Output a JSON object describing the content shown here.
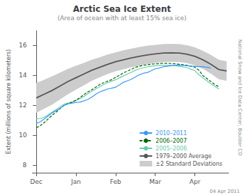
{
  "chart_data": {
    "type": "line",
    "title": "Arctic Sea Ice Extent",
    "subtitle": "(Area of ocean with at least 15% sea ice)",
    "ylabel": "Extent (millions of square kilometers)",
    "xlim": [
      -0.1,
      4.85
    ],
    "xticks": [
      {
        "value": 0,
        "label": "Dec"
      },
      {
        "value": 1,
        "label": "Jan"
      },
      {
        "value": 2,
        "label": "Feb"
      },
      {
        "value": 3,
        "label": "Mar"
      },
      {
        "value": 4,
        "label": "Apr"
      }
    ],
    "ylim": [
      7.5,
      17.0
    ],
    "yticks": [
      8,
      10,
      12,
      14,
      16
    ],
    "grid": false,
    "legend": "lower right",
    "annotations": [
      "National Snow and Ice Data Center, Boulder CO",
      "04 Apr 2011"
    ],
    "series": [
      {
        "name": "2010–2011",
        "color": "#3399ff",
        "line_style": "solid",
        "x": [
          0,
          0.1,
          0.2,
          0.3,
          0.4,
          0.5,
          0.6,
          0.7,
          0.8,
          0.9,
          1.0,
          1.1,
          1.2,
          1.3,
          1.4,
          1.5,
          1.6,
          1.7,
          1.8,
          1.9,
          2.0,
          2.1,
          2.2,
          2.3,
          2.4,
          2.5,
          2.6,
          2.7,
          2.8,
          2.9,
          3.0,
          3.1,
          3.2,
          3.3,
          3.4,
          3.5,
          3.6,
          3.7,
          3.8,
          3.9,
          4.0,
          4.1,
          4.2,
          4.3,
          4.4
        ],
        "values": [
          10.8,
          10.9,
          11.1,
          11.3,
          11.5,
          11.65,
          11.8,
          12.0,
          12.1,
          12.15,
          12.2,
          12.22,
          12.3,
          12.4,
          12.55,
          12.75,
          12.9,
          13.0,
          13.1,
          13.15,
          13.22,
          13.38,
          13.55,
          13.65,
          13.75,
          13.9,
          14.05,
          14.15,
          14.2,
          14.32,
          14.45,
          14.5,
          14.58,
          14.62,
          14.65,
          14.68,
          14.7,
          14.68,
          14.65,
          14.62,
          14.62,
          14.6,
          14.58,
          14.55,
          14.5
        ]
      },
      {
        "name": "2006–2007",
        "color": "#006600",
        "line_style": "dashed",
        "x": [
          0,
          0.1,
          0.2,
          0.3,
          0.4,
          0.5,
          0.6,
          0.7,
          0.8,
          0.9,
          1.0,
          1.1,
          1.2,
          1.3,
          1.4,
          1.5,
          1.6,
          1.7,
          1.8,
          1.9,
          2.0,
          2.1,
          2.2,
          2.3,
          2.4,
          2.5,
          2.6,
          2.7,
          2.8,
          2.9,
          3.0,
          3.1,
          3.2,
          3.3,
          3.4,
          3.5,
          3.6,
          3.7,
          3.8,
          3.9,
          4.0,
          4.1,
          4.2,
          4.3,
          4.4,
          4.5,
          4.6
        ],
        "values": [
          10.5,
          10.65,
          10.85,
          11.1,
          11.35,
          11.55,
          11.78,
          12.0,
          12.12,
          12.22,
          12.35,
          12.52,
          12.72,
          12.9,
          13.05,
          13.22,
          13.4,
          13.52,
          13.62,
          13.72,
          13.88,
          14.02,
          14.18,
          14.3,
          14.42,
          14.55,
          14.62,
          14.68,
          14.72,
          14.75,
          14.78,
          14.8,
          14.82,
          14.82,
          14.8,
          14.78,
          14.75,
          14.72,
          14.68,
          14.62,
          14.55,
          14.35,
          14.0,
          13.8,
          13.6,
          13.4,
          13.25
        ]
      },
      {
        "name": "2005–2006",
        "color": "#66ccaa",
        "line_style": "solid",
        "x": [
          0,
          0.1,
          0.2,
          0.3,
          0.4,
          0.5,
          0.6,
          0.7,
          0.8,
          0.9,
          1.0,
          1.1,
          1.2,
          1.3,
          1.4,
          1.5,
          1.6,
          1.7,
          1.8,
          1.9,
          2.0,
          2.1,
          2.2,
          2.3,
          2.4,
          2.5,
          2.6,
          2.7,
          2.8,
          2.9,
          3.0,
          3.1,
          3.2,
          3.3,
          3.4,
          3.5,
          3.6,
          3.7,
          3.8,
          3.9,
          4.0,
          4.1,
          4.2,
          4.3,
          4.4,
          4.5,
          4.6
        ],
        "values": [
          11.1,
          11.12,
          11.2,
          11.38,
          11.55,
          11.72,
          11.9,
          12.08,
          12.15,
          12.22,
          12.32,
          12.45,
          12.6,
          12.78,
          12.95,
          13.1,
          13.25,
          13.4,
          13.52,
          13.62,
          13.72,
          13.85,
          13.98,
          14.1,
          14.22,
          14.35,
          14.45,
          14.52,
          14.58,
          14.62,
          14.65,
          14.68,
          14.68,
          14.68,
          14.68,
          14.65,
          14.62,
          14.58,
          14.52,
          14.42,
          14.32,
          14.05,
          13.85,
          13.65,
          13.45,
          13.28,
          13.1
        ]
      },
      {
        "name": "1979–2000 Average",
        "color": "#555555",
        "line_style": "solid",
        "x": [
          0,
          0.2,
          0.4,
          0.6,
          0.8,
          1.0,
          1.2,
          1.4,
          1.6,
          1.8,
          2.0,
          2.2,
          2.4,
          2.6,
          2.8,
          3.0,
          3.2,
          3.4,
          3.6,
          3.8,
          4.0,
          4.2,
          4.4,
          4.6,
          4.8
        ],
        "values": [
          12.5,
          12.75,
          13.0,
          13.3,
          13.6,
          13.85,
          14.1,
          14.35,
          14.55,
          14.75,
          14.92,
          15.05,
          15.18,
          15.28,
          15.38,
          15.45,
          15.5,
          15.52,
          15.5,
          15.42,
          15.28,
          15.05,
          14.75,
          14.4,
          14.3
        ]
      },
      {
        "name": "±2 Standard Deviations",
        "type": "band",
        "color": "#cccccc",
        "x": [
          0,
          0.2,
          0.4,
          0.6,
          0.8,
          1.0,
          1.2,
          1.4,
          1.6,
          1.8,
          2.0,
          2.2,
          2.4,
          2.6,
          2.8,
          3.0,
          3.2,
          3.4,
          3.6,
          3.8,
          4.0,
          4.2,
          4.4,
          4.6,
          4.8
        ],
        "lower": [
          11.5,
          11.78,
          12.05,
          12.4,
          12.75,
          13.05,
          13.35,
          13.65,
          13.88,
          14.1,
          14.29,
          14.42,
          14.56,
          14.66,
          14.76,
          14.85,
          14.9,
          14.92,
          14.9,
          14.82,
          14.68,
          14.45,
          14.12,
          13.75,
          13.65
        ],
        "upper": [
          13.5,
          13.72,
          13.95,
          14.2,
          14.45,
          14.65,
          14.85,
          15.05,
          15.22,
          15.4,
          15.55,
          15.68,
          15.8,
          15.9,
          16.0,
          16.05,
          16.1,
          16.12,
          16.1,
          16.02,
          15.88,
          15.65,
          15.38,
          15.05,
          14.95
        ]
      }
    ]
  }
}
